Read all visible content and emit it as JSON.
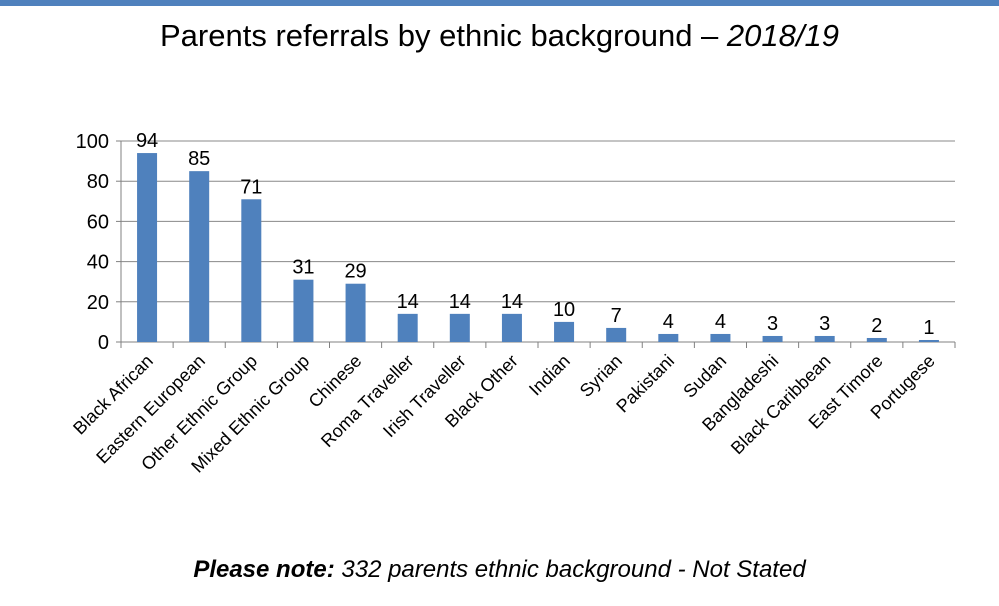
{
  "header": {
    "title_main": "Parents referrals by ethnic background – ",
    "title_period": "2018/19"
  },
  "colors": {
    "bar": "#4f81bd",
    "rule": "#4f81bd",
    "axis": "#808080",
    "grid": "#888888"
  },
  "chart_data": {
    "type": "bar",
    "title": "Parents referrals by ethnic background – 2018/19",
    "categories": [
      "Black African",
      "Eastern European",
      "Other Ethnic Group",
      "Mixed Ethnic Group",
      "Chinese",
      "Roma Traveller",
      "Irish Traveller",
      "Black Other",
      "Indian",
      "Syrian",
      "Pakistani",
      "Sudan",
      "Bangladeshi",
      "Black Caribbean",
      "East Timore",
      "Portugese"
    ],
    "values": [
      94,
      85,
      71,
      31,
      29,
      14,
      14,
      14,
      10,
      7,
      4,
      4,
      3,
      3,
      2,
      1
    ],
    "ylim": [
      0,
      100
    ],
    "yticks": [
      0,
      20,
      40,
      60,
      80,
      100
    ],
    "grid": true,
    "data_labels": true,
    "legend": "none"
  },
  "footer": {
    "note_label": "Please note:",
    "note_text": " 332 parents ethnic background - Not Stated"
  }
}
